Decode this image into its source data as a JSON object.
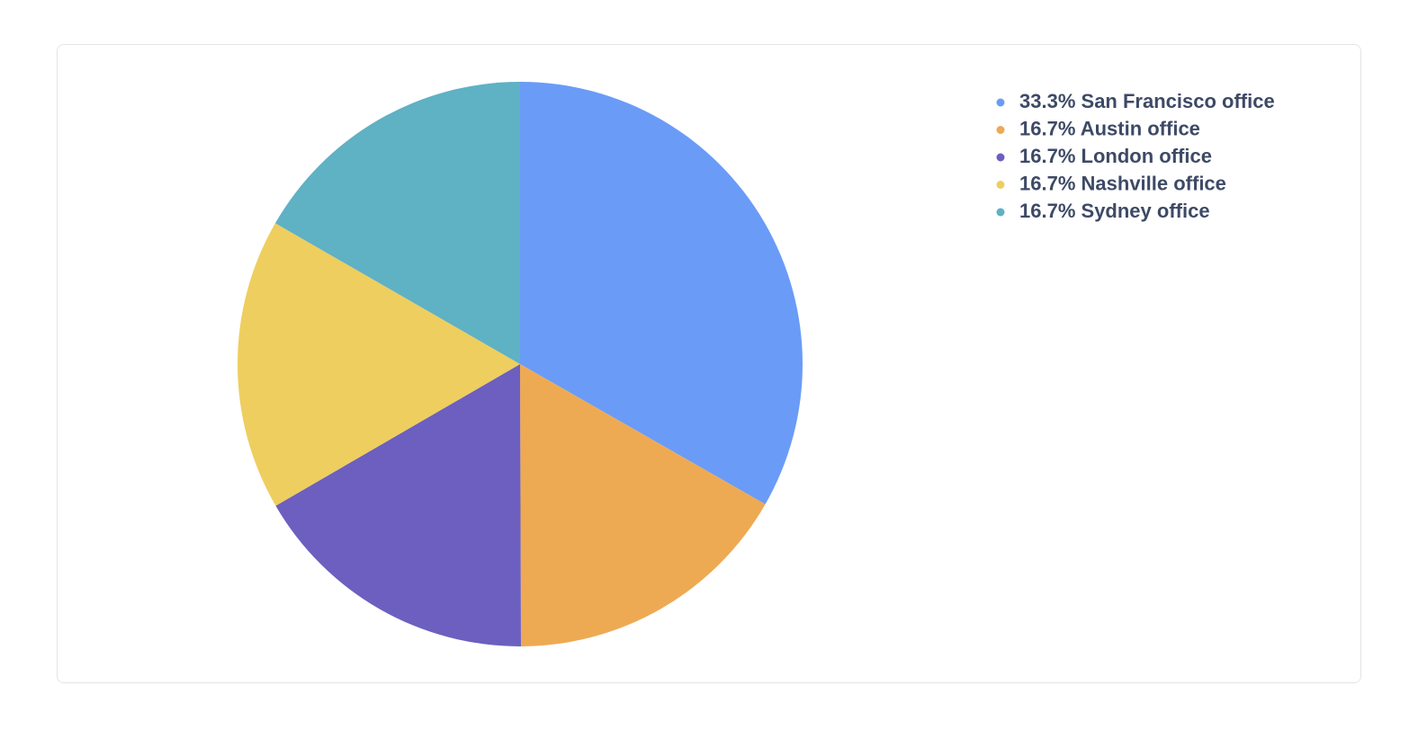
{
  "chart_data": {
    "type": "pie",
    "categories": [
      "San Francisco office",
      "Austin office",
      "London office",
      "Nashville office",
      "Sydney office"
    ],
    "values": [
      33.3,
      16.7,
      16.7,
      16.7,
      16.7
    ],
    "value_labels": [
      "33.3%",
      "16.7%",
      "16.7%",
      "16.7%",
      "16.7%"
    ],
    "colors": [
      "#6a9bf7",
      "#edaa53",
      "#6c5fbf",
      "#eece5f",
      "#5fb1c4"
    ],
    "legend": "top-right"
  }
}
